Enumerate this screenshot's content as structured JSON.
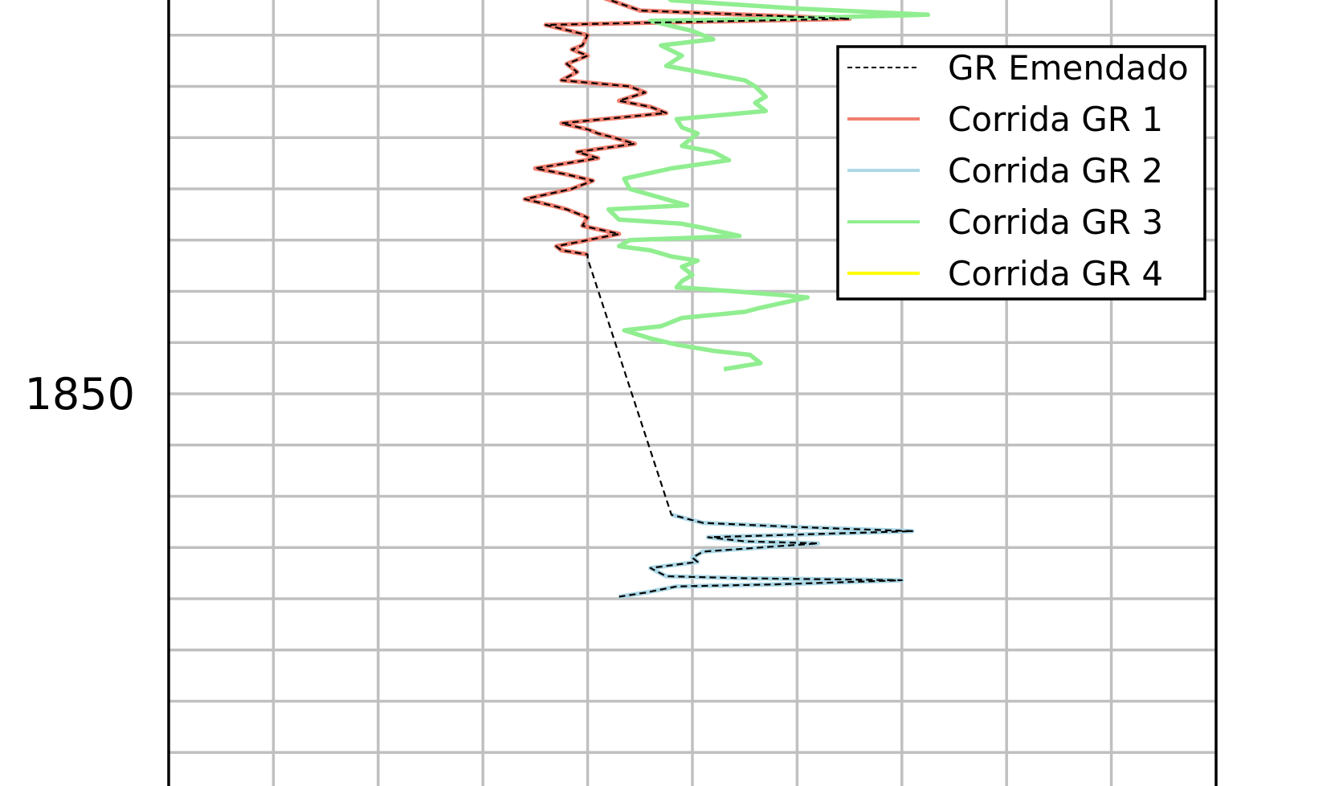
{
  "chart_data": {
    "type": "line",
    "orientation": "vertical-depth-log",
    "ylabel": "",
    "xlabel": "",
    "y_ticks_labeled": [
      1850
    ],
    "y_visible_range": [
      1830,
      1870
    ],
    "x_grid_step": 10,
    "x_visible_range": [
      0,
      100
    ],
    "grid": true,
    "legend": {
      "placement": "top-right",
      "entries": [
        {
          "label": "GR Emendado",
          "color": "#000000",
          "style": "dashed"
        },
        {
          "label": "Corrida GR 1",
          "color": "#f08070",
          "style": "solid"
        },
        {
          "label": "Corrida GR 2",
          "color": "#add8e6",
          "style": "solid"
        },
        {
          "label": "Corrida GR 3",
          "color": "#90ee90",
          "style": "solid"
        },
        {
          "label": "Corrida GR 4",
          "color": "#ffff00",
          "style": "solid"
        }
      ]
    },
    "series": [
      {
        "name": "Corrida GR 1",
        "color": "#f08070",
        "points": [
          [
            40,
            1830.0
          ],
          [
            40.5,
            1830.5
          ],
          [
            45,
            1831.3
          ],
          [
            65,
            1831.7
          ],
          [
            45,
            1831.9
          ],
          [
            36,
            1832.0
          ],
          [
            40,
            1832.5
          ],
          [
            39.5,
            1833.0
          ],
          [
            38.5,
            1833.2
          ],
          [
            40,
            1833.5
          ],
          [
            38,
            1833.9
          ],
          [
            39,
            1834.3
          ],
          [
            37.5,
            1834.7
          ],
          [
            44,
            1835.0
          ],
          [
            45.5,
            1835.3
          ],
          [
            43,
            1835.7
          ],
          [
            46,
            1836.0
          ],
          [
            47.5,
            1836.3
          ],
          [
            37.5,
            1836.8
          ],
          [
            40,
            1837.1
          ],
          [
            41,
            1837.3
          ],
          [
            42.5,
            1837.5
          ],
          [
            44.5,
            1837.8
          ],
          [
            39,
            1838.2
          ],
          [
            41,
            1838.5
          ],
          [
            35,
            1839.0
          ],
          [
            38,
            1839.3
          ],
          [
            40.5,
            1839.6
          ],
          [
            38.5,
            1840.0
          ],
          [
            34,
            1840.5
          ],
          [
            36.5,
            1840.8
          ],
          [
            38,
            1841.0
          ],
          [
            40,
            1841.4
          ],
          [
            39.5,
            1841.8
          ],
          [
            43,
            1842.2
          ],
          [
            40,
            1842.5
          ],
          [
            37,
            1842.8
          ],
          [
            37.5,
            1843.0
          ],
          [
            40,
            1843.2
          ]
        ]
      },
      {
        "name": "Corrida GR 3",
        "color": "#90ee90",
        "points": [
          [
            46,
            1830.0
          ],
          [
            48,
            1830.8
          ],
          [
            60,
            1831.2
          ],
          [
            72.5,
            1831.5
          ],
          [
            58,
            1831.7
          ],
          [
            46,
            1831.8
          ],
          [
            50,
            1832.3
          ],
          [
            52,
            1832.7
          ],
          [
            47,
            1833.0
          ],
          [
            49,
            1833.5
          ],
          [
            47.5,
            1834.0
          ],
          [
            55,
            1834.7
          ],
          [
            56,
            1835.0
          ],
          [
            57,
            1835.5
          ],
          [
            56,
            1835.8
          ],
          [
            57,
            1836.2
          ],
          [
            48.5,
            1836.6
          ],
          [
            49,
            1837.0
          ],
          [
            50.5,
            1837.3
          ],
          [
            49,
            1837.9
          ],
          [
            52,
            1838.2
          ],
          [
            53.5,
            1838.6
          ],
          [
            48,
            1839.0
          ],
          [
            43.5,
            1839.5
          ],
          [
            44,
            1840.0
          ],
          [
            49.5,
            1840.8
          ],
          [
            42,
            1841.0
          ],
          [
            43,
            1841.5
          ],
          [
            49,
            1841.7
          ],
          [
            51,
            1841.9
          ],
          [
            54.5,
            1842.3
          ],
          [
            44,
            1842.5
          ],
          [
            43,
            1842.8
          ],
          [
            46,
            1843.0
          ],
          [
            48,
            1843.3
          ],
          [
            50.5,
            1843.5
          ],
          [
            49,
            1843.8
          ],
          [
            50,
            1844.2
          ],
          [
            49,
            1844.5
          ],
          [
            48.5,
            1844.8
          ],
          [
            54,
            1845.0
          ],
          [
            59,
            1845.2
          ],
          [
            61,
            1845.3
          ],
          [
            56.5,
            1845.8
          ],
          [
            55,
            1846.0
          ],
          [
            49,
            1846.3
          ],
          [
            47,
            1846.7
          ],
          [
            43.5,
            1846.9
          ],
          [
            46,
            1847.3
          ],
          [
            48.5,
            1847.6
          ],
          [
            52,
            1847.9
          ],
          [
            55.5,
            1848.1
          ],
          [
            56,
            1848.3
          ],
          [
            56.5,
            1848.5
          ],
          [
            53,
            1848.8
          ]
        ]
      },
      {
        "name": "Corrida GR 2",
        "color": "#add8e6",
        "points": [
          [
            48,
            1855.9
          ],
          [
            51,
            1856.3
          ],
          [
            60,
            1856.5
          ],
          [
            71,
            1856.7
          ],
          [
            51.5,
            1857.0
          ],
          [
            55,
            1857.2
          ],
          [
            62,
            1857.3
          ],
          [
            51,
            1857.7
          ],
          [
            50,
            1858.0
          ],
          [
            50.5,
            1858.2
          ],
          [
            46,
            1858.5
          ],
          [
            47.5,
            1858.9
          ],
          [
            55,
            1859.0
          ],
          [
            70,
            1859.1
          ],
          [
            58,
            1859.3
          ],
          [
            48.5,
            1859.4
          ],
          [
            45.5,
            1859.7
          ],
          [
            43,
            1859.9
          ]
        ]
      },
      {
        "name": "GR Emendado",
        "color": "#000000",
        "points": [
          [
            40,
            1830.0
          ],
          [
            40.5,
            1830.5
          ],
          [
            45,
            1831.3
          ],
          [
            65,
            1831.7
          ],
          [
            45,
            1831.9
          ],
          [
            36,
            1832.0
          ],
          [
            40,
            1832.5
          ],
          [
            39.5,
            1833.0
          ],
          [
            38.5,
            1833.2
          ],
          [
            40,
            1833.5
          ],
          [
            38,
            1833.9
          ],
          [
            39,
            1834.3
          ],
          [
            37.5,
            1834.7
          ],
          [
            44,
            1835.0
          ],
          [
            45.5,
            1835.3
          ],
          [
            43,
            1835.7
          ],
          [
            46,
            1836.0
          ],
          [
            47.5,
            1836.3
          ],
          [
            37.5,
            1836.8
          ],
          [
            40,
            1837.1
          ],
          [
            41,
            1837.3
          ],
          [
            42.5,
            1837.5
          ],
          [
            44.5,
            1837.8
          ],
          [
            39,
            1838.2
          ],
          [
            41,
            1838.5
          ],
          [
            35,
            1839.0
          ],
          [
            38,
            1839.3
          ],
          [
            40.5,
            1839.6
          ],
          [
            38.5,
            1840.0
          ],
          [
            34,
            1840.5
          ],
          [
            36.5,
            1840.8
          ],
          [
            38,
            1841.0
          ],
          [
            40,
            1841.4
          ],
          [
            39.5,
            1841.8
          ],
          [
            43,
            1842.2
          ],
          [
            40,
            1842.5
          ],
          [
            37,
            1842.8
          ],
          [
            37.5,
            1843.0
          ],
          [
            40,
            1843.2
          ],
          [
            40,
            1843.4
          ],
          [
            48,
            1855.9
          ],
          [
            51,
            1856.3
          ],
          [
            60,
            1856.5
          ],
          [
            71,
            1856.7
          ],
          [
            51.5,
            1857.0
          ],
          [
            55,
            1857.2
          ],
          [
            62,
            1857.3
          ],
          [
            51,
            1857.7
          ],
          [
            50,
            1858.0
          ],
          [
            50.5,
            1858.2
          ],
          [
            46,
            1858.5
          ],
          [
            47.5,
            1858.9
          ],
          [
            55,
            1859.0
          ],
          [
            70,
            1859.1
          ],
          [
            58,
            1859.3
          ],
          [
            48.5,
            1859.4
          ],
          [
            45.5,
            1859.7
          ],
          [
            43,
            1859.9
          ]
        ]
      }
    ]
  }
}
